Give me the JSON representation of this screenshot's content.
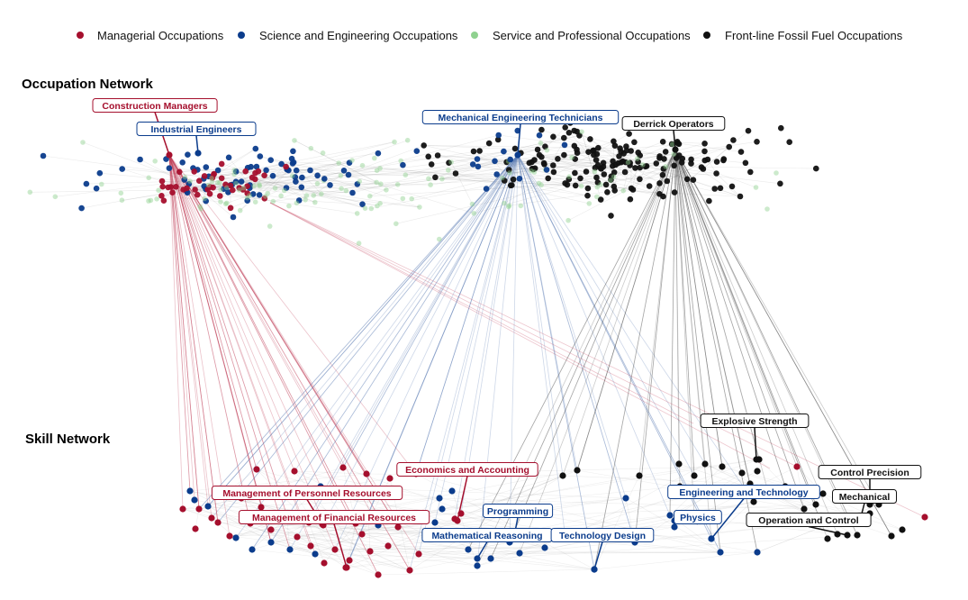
{
  "legend": {
    "items": [
      {
        "label": "Managerial Occupations",
        "color": "#a50f2d"
      },
      {
        "label": "Science and Engineering Occupations",
        "color": "#0b3c8c"
      },
      {
        "label": "Service and Professional Occupations",
        "color": "#8fd18f"
      },
      {
        "label": "Front-line Fossil Fuel Occupations",
        "color": "#111111"
      }
    ]
  },
  "occupation_network": {
    "title": "Occupation Network",
    "labels": [
      {
        "text": "Construction Managers",
        "category": "managerial"
      },
      {
        "text": "Industrial Engineers",
        "category": "science"
      },
      {
        "text": "Mechanical Engineering Technicians",
        "category": "science"
      },
      {
        "text": "Derrick Operators",
        "category": "fossil"
      }
    ]
  },
  "skill_network": {
    "title": "Skill Network",
    "labels": [
      {
        "text": "Economics and Accounting",
        "category": "managerial"
      },
      {
        "text": "Management of Personnel Resources",
        "category": "managerial"
      },
      {
        "text": "Management of Financial Resources",
        "category": "managerial"
      },
      {
        "text": "Programming",
        "category": "science"
      },
      {
        "text": "Mathematical Reasoning",
        "category": "science"
      },
      {
        "text": "Technology Design",
        "category": "science"
      },
      {
        "text": "Engineering and Technology",
        "category": "science"
      },
      {
        "text": "Physics",
        "category": "science"
      },
      {
        "text": "Explosive Strength",
        "category": "fossil"
      },
      {
        "text": "Control Precision",
        "category": "fossil"
      },
      {
        "text": "Mechanical",
        "category": "fossil"
      },
      {
        "text": "Operation and Control",
        "category": "fossil"
      }
    ]
  },
  "colors": {
    "managerial": "#a50f2d",
    "science": "#0b3c8c",
    "service": "#8fd18f",
    "fossil": "#111111"
  }
}
